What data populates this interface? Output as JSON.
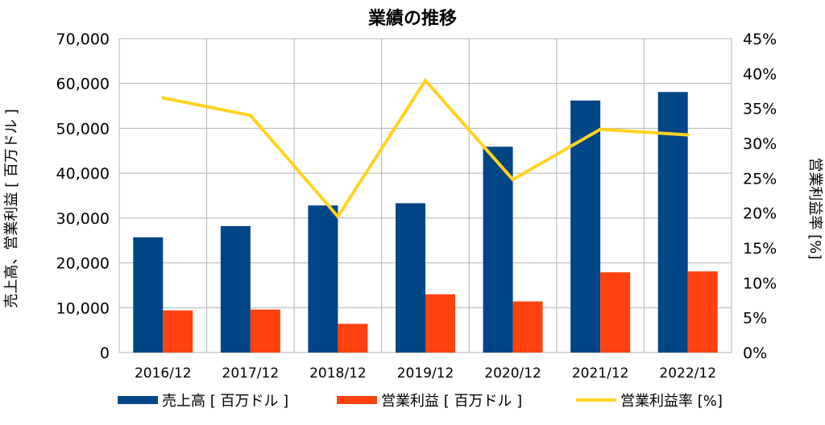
{
  "chart_data": {
    "type": "bar",
    "title": "業績の推移",
    "categories": [
      "2016/12",
      "2017/12",
      "2018/12",
      "2019/12",
      "2020/12",
      "2021/12",
      "2022/12"
    ],
    "series": [
      {
        "name": "売上高 [ 百万ドル ]",
        "type": "bar",
        "axis": "left",
        "color": "#004586",
        "values": [
          25700,
          28200,
          32800,
          33300,
          45900,
          56200,
          58100
        ]
      },
      {
        "name": "営業利益 [ 百万ドル ]",
        "type": "bar",
        "axis": "left",
        "color": "#ff420e",
        "values": [
          9400,
          9600,
          6400,
          13000,
          11400,
          17900,
          18100
        ]
      },
      {
        "name": "営業利益率 [%]",
        "type": "line",
        "axis": "right",
        "color": "#ffd320",
        "values": [
          36.5,
          34.0,
          19.5,
          39.0,
          24.8,
          32.0,
          31.2
        ]
      }
    ],
    "ylabel": "売上高、営業利益 [ 百万ドル ]",
    "y2label": "営業利益率 [%]",
    "ylim": [
      0,
      70000
    ],
    "y2lim": [
      0,
      45
    ],
    "yticks": [
      "0",
      "10,000",
      "20,000",
      "30,000",
      "40,000",
      "50,000",
      "60,000",
      "70,000"
    ],
    "y2ticks": [
      "0%",
      "5%",
      "10%",
      "15%",
      "20%",
      "25%",
      "30%",
      "35%",
      "40%",
      "45%"
    ],
    "grid": true,
    "legend": "bottom"
  }
}
